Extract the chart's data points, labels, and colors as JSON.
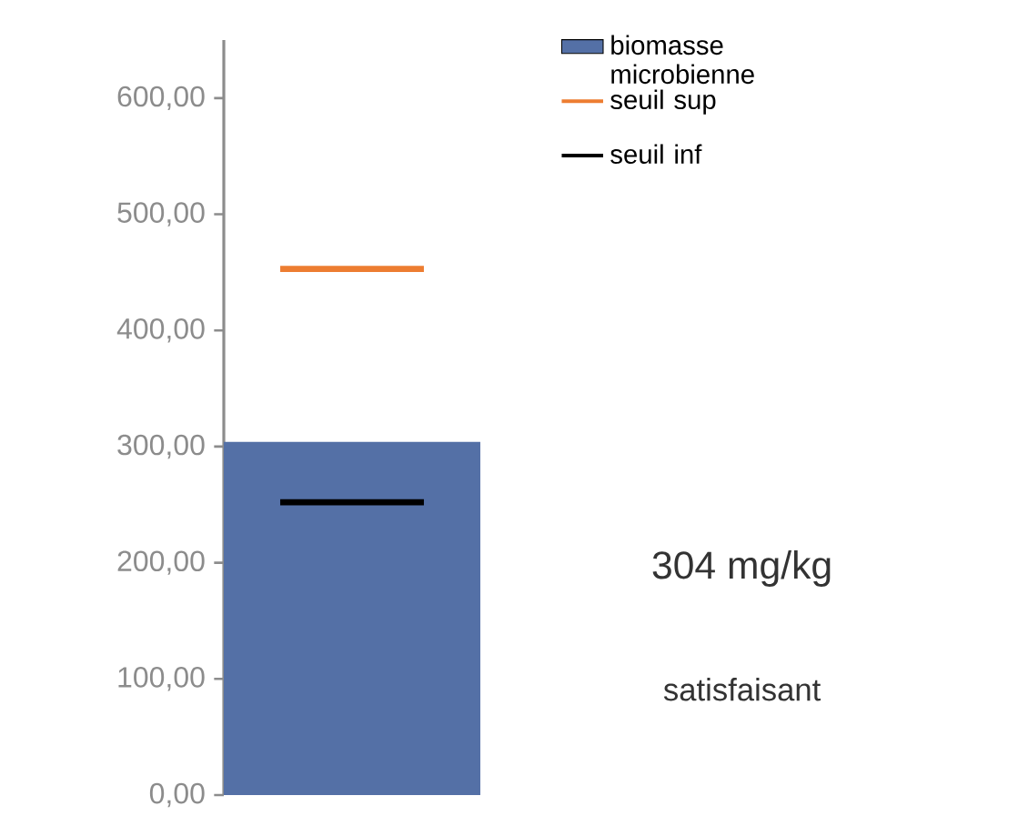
{
  "chart_data": {
    "type": "bar",
    "categories": [
      null
    ],
    "series": [
      {
        "name": "biomasse microbienne",
        "color": "#5470a6",
        "values": [
          304
        ]
      }
    ],
    "ref_lines": [
      {
        "axis": "y",
        "value": 453,
        "label": "seuil sup",
        "color": "#ed7d31"
      },
      {
        "axis": "y",
        "value": 252,
        "label": "seuil inf",
        "color": "#000000"
      }
    ],
    "ylim": [
      0,
      650
    ],
    "yticks": [
      {
        "value": 0,
        "label": "0,00"
      },
      {
        "value": 100,
        "label": "100,00"
      },
      {
        "value": 200,
        "label": "200,00"
      },
      {
        "value": 300,
        "label": "300,00"
      },
      {
        "value": 400,
        "label": "400,00"
      },
      {
        "value": 500,
        "label": "500,00"
      },
      {
        "value": 600,
        "label": "600,00"
      }
    ],
    "tick_labels": "y",
    "legend": "right",
    "grid": false,
    "annotations": [
      "304 mg/kg",
      "satisfaisant"
    ]
  }
}
